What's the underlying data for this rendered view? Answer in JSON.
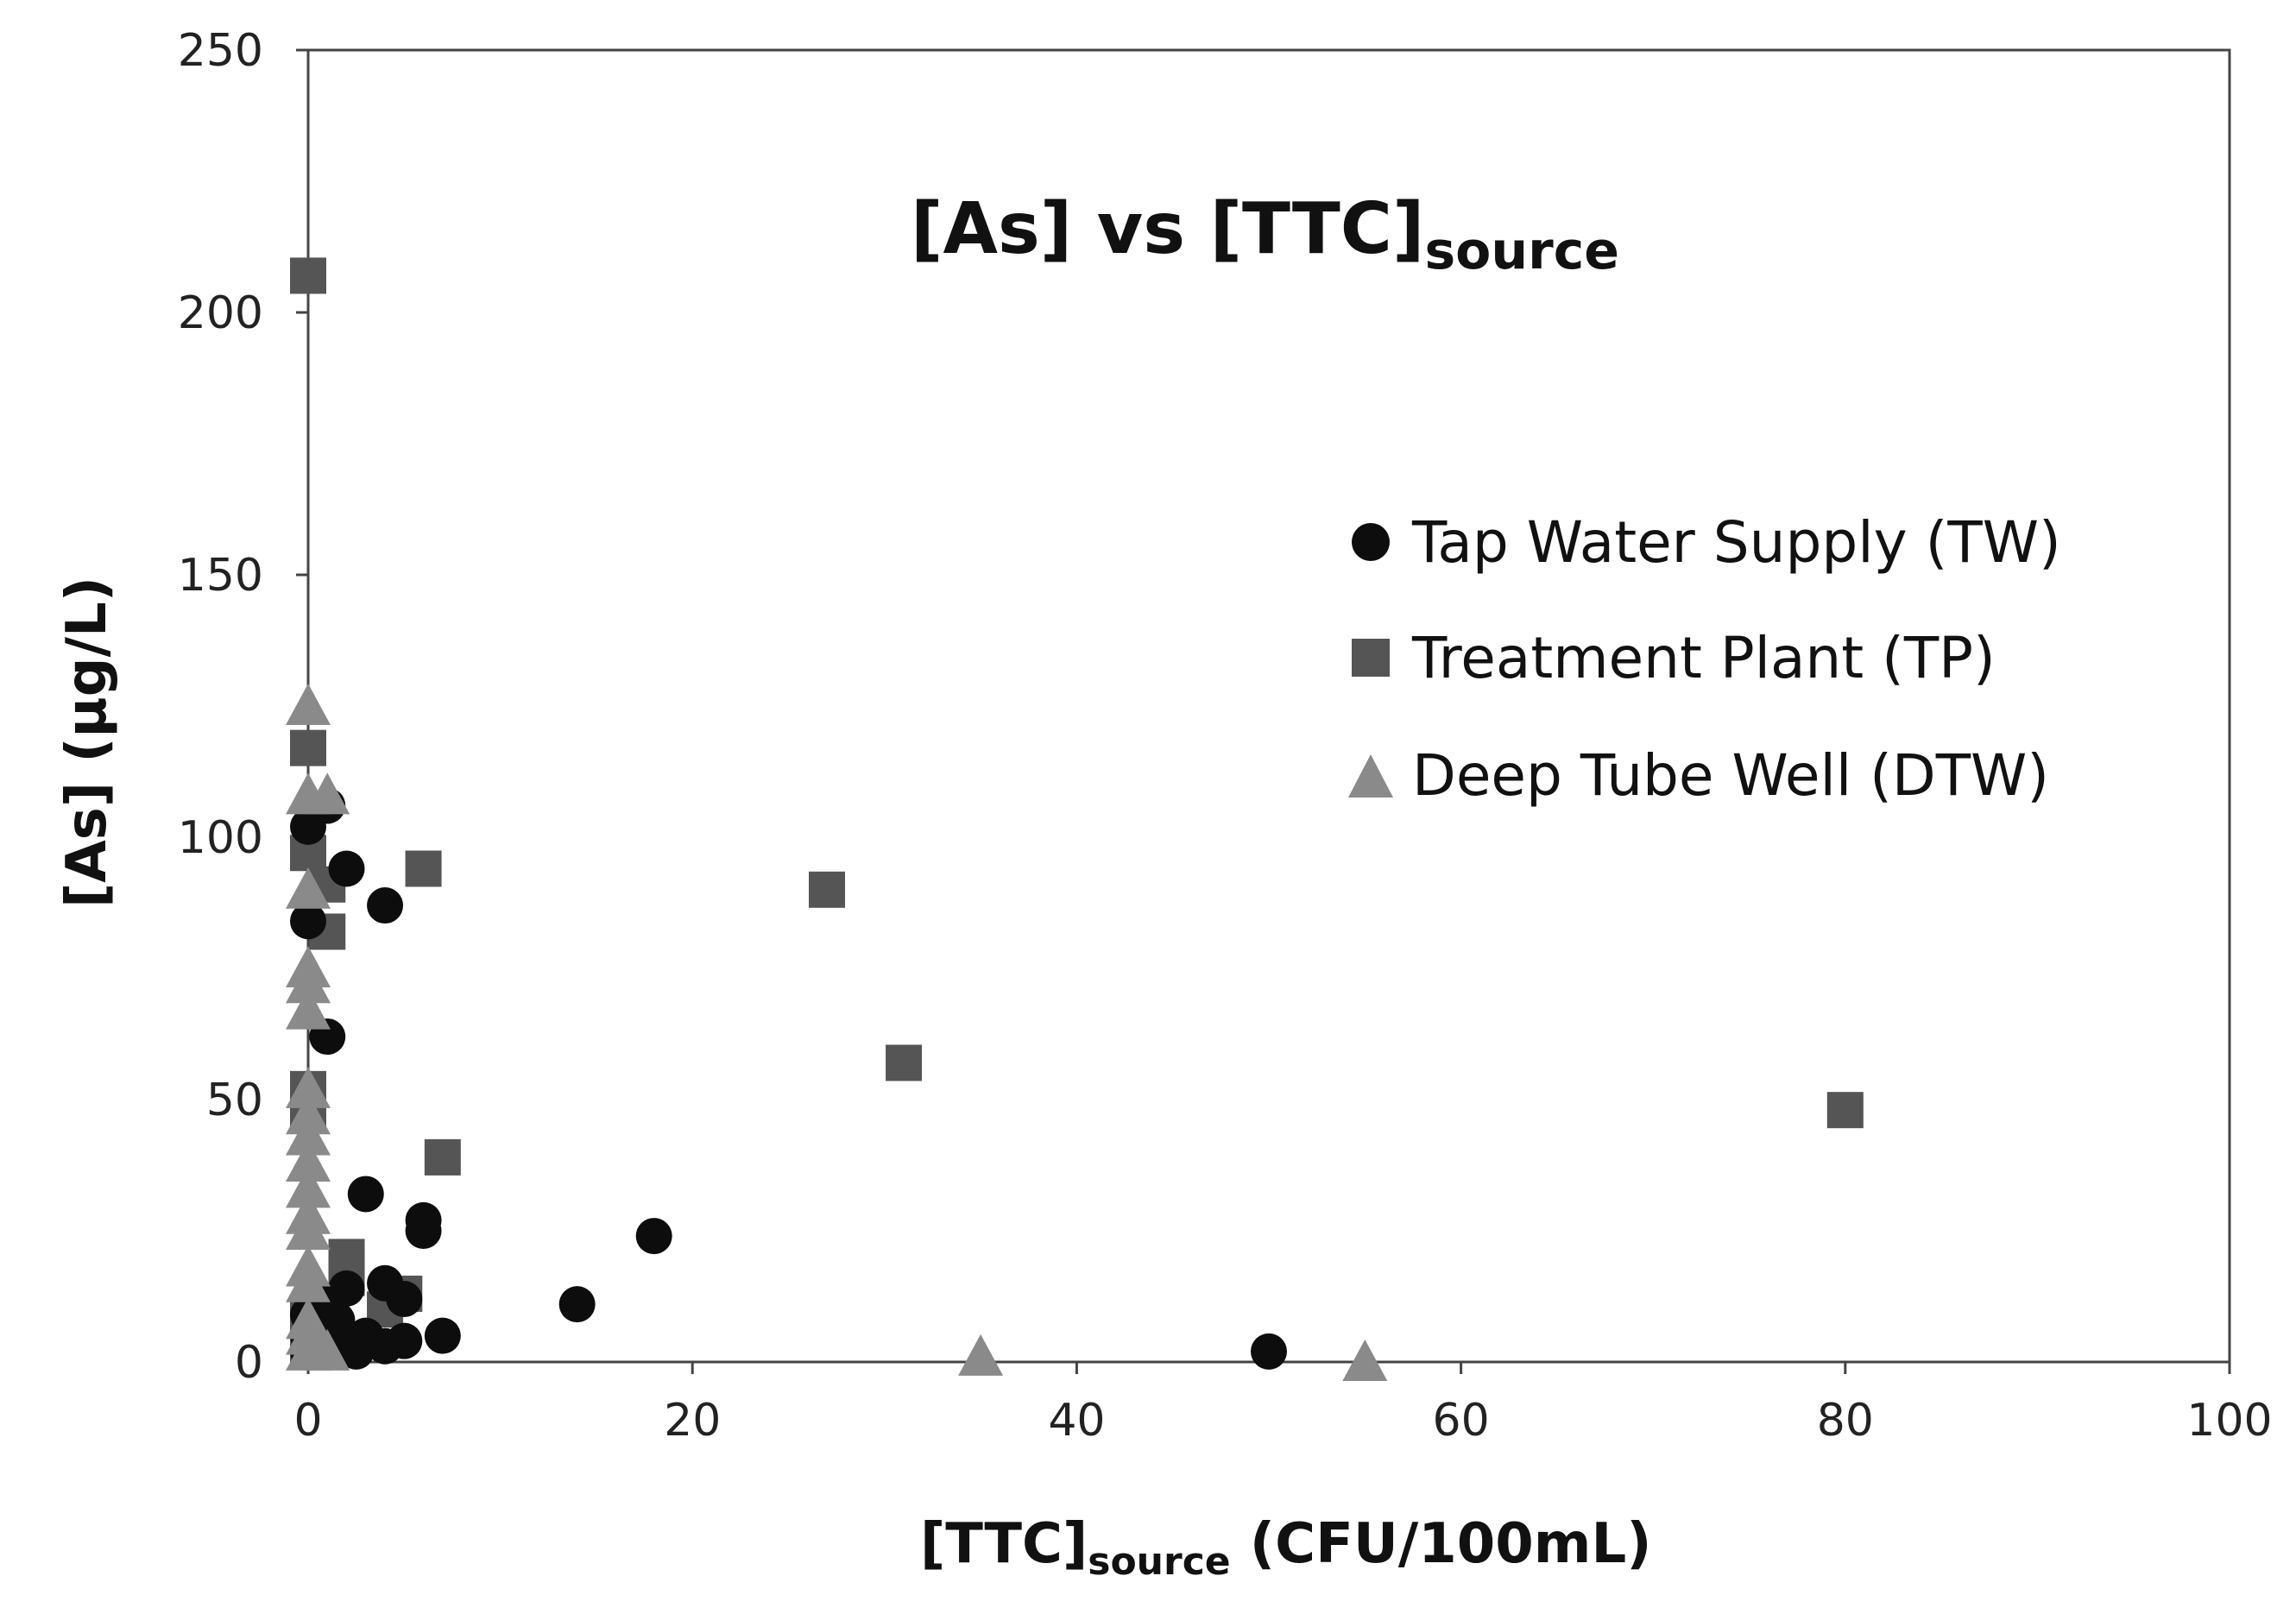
{
  "chart_data": {
    "type": "scatter",
    "title": "[As] vs [TTC]",
    "title_subscript": "source",
    "xlabel_prefix": "[TTC]",
    "xlabel_subscript": "source",
    "xlabel_suffix": " (CFU/100mL)",
    "ylabel": "[As] (µg/L)",
    "xlim": [
      0,
      100
    ],
    "ylim": [
      0,
      250
    ],
    "x_ticks": [
      0,
      20,
      40,
      60,
      80,
      100
    ],
    "y_ticks": [
      0,
      50,
      100,
      150,
      200,
      250
    ],
    "grid": false,
    "legend_position": "right",
    "series": [
      {
        "name": "Tap Water Supply (TW)",
        "marker": "circle",
        "color": "#0d0d0d",
        "points": [
          [
            0,
            102
          ],
          [
            0,
            84
          ],
          [
            0,
            9
          ],
          [
            0,
            5
          ],
          [
            0,
            2
          ],
          [
            0.5,
            6
          ],
          [
            0.5,
            12
          ],
          [
            1,
            106
          ],
          [
            1,
            62
          ],
          [
            1,
            3
          ],
          [
            1.5,
            8
          ],
          [
            2,
            94
          ],
          [
            2,
            14
          ],
          [
            2,
            4
          ],
          [
            2.5,
            2
          ],
          [
            3,
            32
          ],
          [
            3,
            5
          ],
          [
            4,
            87
          ],
          [
            4,
            15
          ],
          [
            4,
            3
          ],
          [
            5,
            12
          ],
          [
            5,
            4
          ],
          [
            6,
            27
          ],
          [
            6,
            25
          ],
          [
            7,
            5
          ],
          [
            14,
            11
          ],
          [
            18,
            24
          ],
          [
            50,
            2
          ]
        ]
      },
      {
        "name": "Treatment Plant (TP)",
        "marker": "square",
        "color": "#555555",
        "points": [
          [
            0,
            207
          ],
          [
            0,
            117
          ],
          [
            0,
            97
          ],
          [
            0,
            52
          ],
          [
            0,
            47
          ],
          [
            0,
            8
          ],
          [
            0,
            3
          ],
          [
            1,
            91
          ],
          [
            1,
            82
          ],
          [
            2,
            20
          ],
          [
            2,
            16
          ],
          [
            4,
            10
          ],
          [
            5,
            13
          ],
          [
            6,
            94
          ],
          [
            7,
            39
          ],
          [
            27,
            90
          ],
          [
            31,
            57
          ],
          [
            80,
            48
          ]
        ]
      },
      {
        "name": "Deep Tube Well (DTW)",
        "marker": "triangle",
        "color": "#8a8a8a",
        "points": [
          [
            0,
            125
          ],
          [
            0,
            108
          ],
          [
            0,
            90
          ],
          [
            0,
            75
          ],
          [
            0,
            72
          ],
          [
            0,
            67
          ],
          [
            0,
            52
          ],
          [
            0,
            47
          ],
          [
            0,
            43
          ],
          [
            0,
            38
          ],
          [
            0,
            33
          ],
          [
            0,
            28
          ],
          [
            0,
            25
          ],
          [
            0,
            18
          ],
          [
            0,
            15
          ],
          [
            0,
            8
          ],
          [
            0,
            5
          ],
          [
            0,
            2
          ],
          [
            0.5,
            4
          ],
          [
            1,
            108
          ],
          [
            1,
            2
          ],
          [
            35,
            1
          ],
          [
            55,
            0
          ]
        ]
      }
    ]
  }
}
